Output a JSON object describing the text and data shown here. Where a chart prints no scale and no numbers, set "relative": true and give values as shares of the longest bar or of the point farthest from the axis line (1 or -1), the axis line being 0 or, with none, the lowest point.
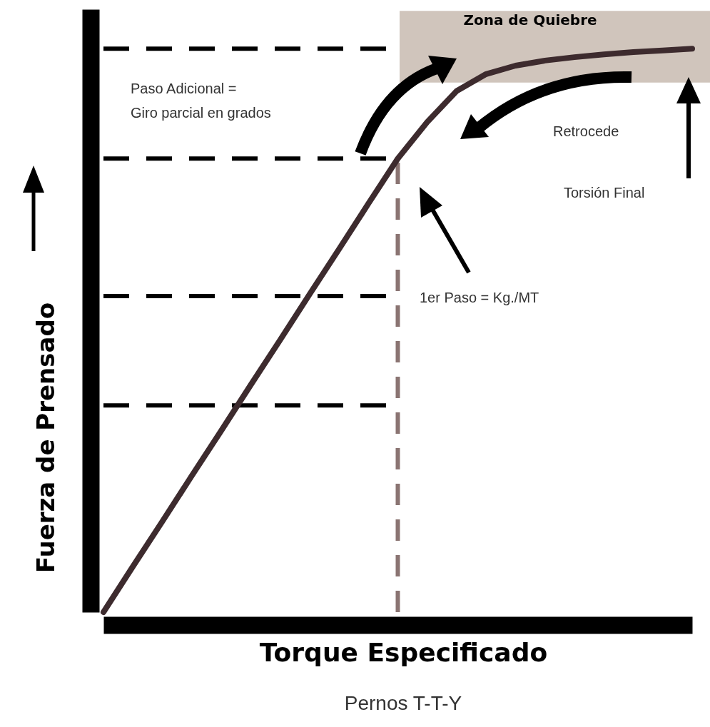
{
  "chart_data": {
    "type": "line",
    "relative": true,
    "xlabel": "Torque Especificado",
    "ylabel": "Fuerza de Prensado",
    "categories": [
      null,
      null,
      null,
      null,
      null,
      null,
      null,
      null,
      null,
      null,
      null,
      null,
      null,
      null,
      null,
      null,
      null,
      null,
      null,
      null,
      null
    ],
    "series": [
      {
        "color": "#3d2b2e",
        "values": [
          0,
          0.081,
          0.161,
          0.242,
          0.322,
          0.403,
          0.483,
          0.564,
          0.644,
          0.725,
          0.805,
          0.87,
          0.925,
          0.955,
          0.97,
          0.979,
          0.985,
          0.99,
          0.994,
          0.997,
          1
        ]
      }
    ],
    "ref_lines": [
      {
        "axis": "y",
        "value": 1,
        "color": "#000000",
        "line_style": "dashed"
      },
      {
        "axis": "y",
        "value": 0.805,
        "color": "#000000",
        "line_style": "dashed"
      },
      {
        "axis": "y",
        "value": 0.561,
        "color": "#000000",
        "line_style": "dashed"
      },
      {
        "axis": "y",
        "value": 0.367,
        "color": "#000000",
        "line_style": "dashed"
      }
    ],
    "bands": [
      {
        "axis": "y",
        "from": 0.94,
        "to": 1.067,
        "label": "Zona de Quiebre",
        "color": "#cbbfb5"
      }
    ],
    "annotations": [
      "Paso Adicional =\nGiro parcial en grados",
      "Retrocede",
      "Torsión Final",
      "1er Paso = Kg./MT",
      "Pernos T-T-Y"
    ]
  }
}
